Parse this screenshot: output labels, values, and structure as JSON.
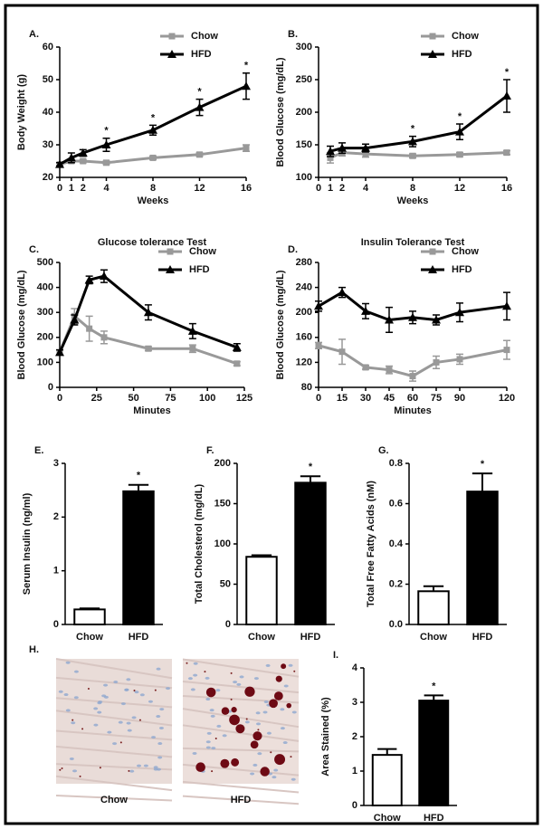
{
  "chart_data": [
    {
      "type": "line",
      "panel_label": "A.",
      "x_label": "Weeks",
      "y_label": "Body Weight (g)",
      "x": [
        0,
        1,
        2,
        4,
        8,
        12,
        16
      ],
      "xlim": [
        0,
        16
      ],
      "xticks": [
        0,
        1,
        2,
        4,
        8,
        12,
        16
      ],
      "ylim": [
        20,
        60
      ],
      "yticks": [
        20,
        30,
        40,
        50,
        60
      ],
      "series": [
        {
          "name": "Chow",
          "color": "#999999",
          "marker": "square",
          "values": [
            24,
            25,
            25,
            24.5,
            26,
            27,
            29
          ],
          "errors": [
            0.5,
            0.5,
            0.5,
            0.5,
            0.5,
            0.5,
            1
          ]
        },
        {
          "name": "HFD",
          "color": "#000000",
          "marker": "triangle",
          "values": [
            24,
            26,
            27.5,
            30,
            34.5,
            41.5,
            48
          ],
          "errors": [
            0.5,
            1.5,
            1,
            2,
            1.5,
            2.5,
            4
          ]
        }
      ],
      "annotations": [
        {
          "x": 4,
          "text": "*"
        },
        {
          "x": 8,
          "text": "*"
        },
        {
          "x": 12,
          "text": "*"
        },
        {
          "x": 16,
          "text": "*"
        }
      ]
    },
    {
      "type": "line",
      "panel_label": "B.",
      "x_label": "Weeks",
      "y_label": "Blood Glucose (mg/dL)",
      "x": [
        1,
        2,
        4,
        8,
        12,
        16
      ],
      "xlim": [
        0,
        16
      ],
      "xticks": [
        0,
        1,
        2,
        4,
        8,
        12,
        16
      ],
      "ylim": [
        100,
        300
      ],
      "yticks": [
        100,
        150,
        200,
        250,
        300
      ],
      "series": [
        {
          "name": "Chow",
          "color": "#999999",
          "marker": "square",
          "values": [
            130,
            138,
            136,
            133,
            135,
            138
          ],
          "errors": [
            8,
            5,
            5,
            3,
            3,
            3
          ]
        },
        {
          "name": "HFD",
          "color": "#000000",
          "marker": "triangle",
          "values": [
            140,
            145,
            145,
            155,
            170,
            225
          ],
          "errors": [
            8,
            8,
            6,
            8,
            12,
            25
          ]
        }
      ],
      "annotations": [
        {
          "x": 8,
          "text": "*"
        },
        {
          "x": 12,
          "text": "*"
        },
        {
          "x": 16,
          "text": "*"
        }
      ]
    },
    {
      "type": "line",
      "panel_label": "C.",
      "title": "Glucose tolerance Test",
      "x_label": "Minutes",
      "y_label": "Blood Glucose (mg/dL)",
      "x": [
        0,
        10,
        20,
        30,
        60,
        90,
        120
      ],
      "xlim": [
        0,
        125
      ],
      "xticks": [
        0,
        25,
        50,
        75,
        100,
        125
      ],
      "ylim": [
        0,
        500
      ],
      "yticks": [
        0,
        100,
        200,
        300,
        400,
        500
      ],
      "series": [
        {
          "name": "Chow",
          "color": "#999999",
          "marker": "square",
          "values": [
            140,
            285,
            235,
            200,
            155,
            155,
            95
          ],
          "errors": [
            10,
            30,
            50,
            25,
            8,
            15,
            8
          ]
        },
        {
          "name": "HFD",
          "color": "#000000",
          "marker": "triangle",
          "values": [
            140,
            270,
            430,
            445,
            300,
            225,
            160
          ],
          "errors": [
            10,
            20,
            15,
            25,
            30,
            30,
            15
          ]
        }
      ]
    },
    {
      "type": "line",
      "panel_label": "D.",
      "title": "Insulin Tolerance Test",
      "x_label": "Minutes",
      "y_label": "Blood Glucose (mg/dL)",
      "x": [
        0,
        15,
        30,
        45,
        60,
        75,
        90,
        120
      ],
      "xlim": [
        0,
        120
      ],
      "xticks": [
        0,
        15,
        30,
        45,
        60,
        75,
        90,
        120
      ],
      "ylim": [
        80,
        280
      ],
      "yticks": [
        80,
        120,
        160,
        200,
        240,
        280
      ],
      "series": [
        {
          "name": "Chow",
          "color": "#999999",
          "marker": "square",
          "values": [
            147,
            137,
            112,
            108,
            98,
            120,
            125,
            140
          ],
          "errors": [
            5,
            20,
            3,
            6,
            8,
            10,
            8,
            15
          ]
        },
        {
          "name": "HFD",
          "color": "#000000",
          "marker": "triangle",
          "values": [
            210,
            232,
            202,
            188,
            192,
            188,
            200,
            210
          ],
          "errors": [
            8,
            8,
            12,
            20,
            10,
            8,
            15,
            22
          ]
        }
      ]
    },
    {
      "type": "bar",
      "panel_label": "E.",
      "y_label": "Serum Insulin (ng/ml)",
      "categories": [
        "Chow",
        "HFD"
      ],
      "values": [
        0.28,
        2.48
      ],
      "errors": [
        0.02,
        0.12
      ],
      "colors": [
        "#ffffff",
        "#000000"
      ],
      "ylim": [
        0,
        3
      ],
      "yticks": [
        0,
        1,
        2,
        3
      ],
      "annotations": [
        {
          "category": "HFD",
          "text": "*"
        }
      ]
    },
    {
      "type": "bar",
      "panel_label": "F.",
      "y_label": "Total Cholesterol (mg/dL)",
      "categories": [
        "Chow",
        "HFD"
      ],
      "values": [
        84,
        176
      ],
      "errors": [
        2,
        8
      ],
      "colors": [
        "#ffffff",
        "#000000"
      ],
      "ylim": [
        0,
        200
      ],
      "yticks": [
        0,
        50,
        100,
        150,
        200
      ],
      "annotations": [
        {
          "category": "HFD",
          "text": "*"
        }
      ]
    },
    {
      "type": "bar",
      "panel_label": "G.",
      "y_label": "Total Free Fatty Acids (nM)",
      "categories": [
        "Chow",
        "HFD"
      ],
      "values": [
        0.165,
        0.66
      ],
      "errors": [
        0.025,
        0.09
      ],
      "colors": [
        "#ffffff",
        "#000000"
      ],
      "ylim": [
        0,
        0.8
      ],
      "yticks": [
        {
          "value": 0,
          "label": "0.0"
        },
        0.2,
        0.4,
        0.6,
        0.8
      ],
      "annotations": [
        {
          "category": "HFD",
          "text": "*"
        }
      ]
    },
    {
      "type": "bar",
      "panel_label": "I.",
      "y_label": "Area Stained (%)",
      "categories": [
        "Chow",
        "HFD"
      ],
      "values": [
        1.47,
        3.05
      ],
      "errors": [
        0.17,
        0.15
      ],
      "colors": [
        "#ffffff",
        "#000000"
      ],
      "ylim": [
        0,
        4
      ],
      "yticks": [
        0,
        1,
        2,
        3,
        4
      ],
      "annotations": [
        {
          "category": "HFD",
          "text": "*"
        }
      ]
    }
  ],
  "micrographs": {
    "panel_label": "H.",
    "captions": [
      "Chow",
      "HFD"
    ]
  }
}
